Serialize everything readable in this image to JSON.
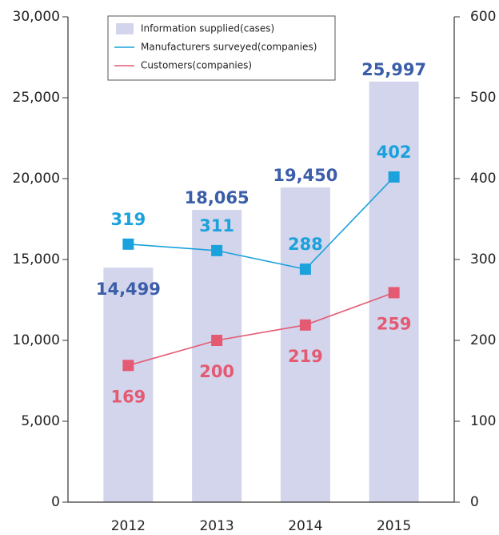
{
  "chart_data": {
    "type": "bar-line",
    "categories": [
      "2012",
      "2013",
      "2014",
      "2015"
    ],
    "series": [
      {
        "name": "Information supplied(cases)",
        "type": "bar",
        "color": "#d2d5ec",
        "label_color": "#3b5ea9",
        "values": [
          14499,
          18065,
          19450,
          25997
        ],
        "value_labels": [
          "14,499",
          "18,065",
          "19,450",
          "25,997"
        ]
      },
      {
        "name": "Manufacturers surveyed(companies)",
        "type": "line",
        "axis": "y2",
        "color": "#1ba1dc",
        "values": [
          319,
          311,
          288,
          402
        ]
      },
      {
        "name": "Customers(companies)",
        "type": "line",
        "axis": "y2",
        "color": "#e45a72",
        "values": [
          169,
          200,
          219,
          259
        ]
      }
    ],
    "ylim": [
      0,
      30000
    ],
    "yticks": [
      0,
      {
        "value": 5000,
        "label": "5,000"
      },
      {
        "value": 10000,
        "label": "10,000"
      },
      {
        "value": 15000,
        "label": "15,000"
      },
      {
        "value": 20000,
        "label": "20,000"
      },
      {
        "value": 25000,
        "label": "25,000"
      },
      {
        "value": 30000,
        "label": "30,000"
      }
    ],
    "y2lim": [
      0,
      600
    ],
    "y2ticks": [
      0,
      100,
      200,
      300,
      400,
      500,
      600
    ]
  }
}
